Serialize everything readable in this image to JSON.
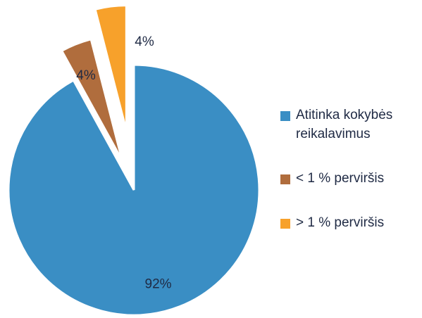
{
  "chart_data": {
    "type": "pie",
    "categories": [
      "Atitinka kokybės reikalavimus",
      "< 1 % perviršis",
      "> 1 % perviršis"
    ],
    "values": [
      92,
      4,
      4
    ],
    "value_labels": [
      "92%",
      "4%",
      "4%"
    ],
    "colors": [
      "#3a8ec4",
      "#b06d3d",
      "#f7a12b"
    ],
    "exploded": [
      false,
      true,
      true
    ],
    "legend": "right"
  }
}
